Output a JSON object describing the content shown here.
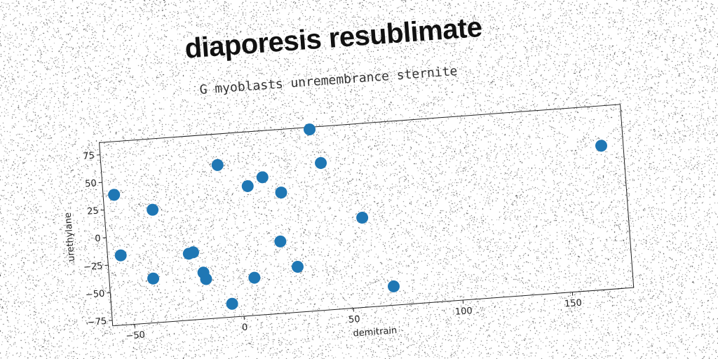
{
  "title": "diaporesis resublimate",
  "subtitle": "G myoblasts unremembrance sternite",
  "chart_data": {
    "type": "scatter",
    "title": "diaporesis resublimate",
    "subtitle": "G myoblasts unremembrance sternite",
    "xlabel": "demitrain",
    "ylabel": "urethylane",
    "xlim": [
      -60,
      178
    ],
    "ylim": [
      -80,
      86
    ],
    "xticks": [
      -50,
      0,
      50,
      100,
      150
    ],
    "yticks": [
      -75,
      -50,
      -25,
      0,
      25,
      50,
      75
    ],
    "marker_color": "#1f77b4",
    "grid": false,
    "x": [
      -55,
      -54,
      -38,
      -40,
      -23,
      -21,
      -17,
      -16,
      -7,
      -5,
      6,
      6,
      13,
      21,
      19,
      26,
      36,
      40,
      57,
      69,
      168
    ],
    "y": [
      38,
      -17,
      22,
      -40,
      -20,
      -19,
      -38,
      -44,
      58,
      -68,
      37,
      -46,
      44,
      29,
      -15,
      -39,
      84,
      53,
      1,
      -63,
      50
    ]
  }
}
